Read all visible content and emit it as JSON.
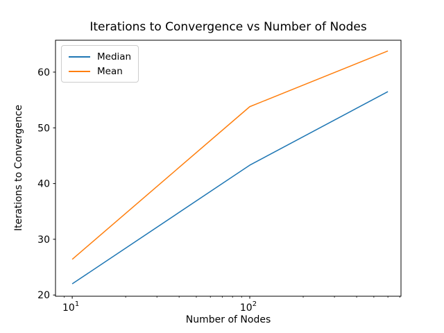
{
  "chart_data": {
    "type": "line",
    "title": "Iterations to Convergence vs Number of Nodes",
    "xlabel": "Number of Nodes",
    "ylabel": "Iterations to Convergence",
    "xscale": "log",
    "x": [
      10,
      100,
      600
    ],
    "series": [
      {
        "name": "Median",
        "color": "#1f77b4",
        "values": [
          22.0,
          43.3,
          56.5
        ]
      },
      {
        "name": "Mean",
        "color": "#ff7f0e",
        "values": [
          26.4,
          53.8,
          63.8
        ]
      }
    ],
    "xlim": [
      8.05,
      711
    ],
    "ylim": [
      19.78,
      65.72
    ],
    "yticks": [
      20,
      30,
      40,
      50,
      60
    ],
    "xticks_major": [
      {
        "value": 10,
        "base": "10",
        "exp": "1"
      },
      {
        "value": 100,
        "base": "10",
        "exp": "2"
      }
    ],
    "xticks_minor": [
      9,
      20,
      30,
      40,
      50,
      60,
      70,
      80,
      90,
      200,
      300,
      400,
      500,
      600,
      700
    ],
    "grid": false,
    "legend": {
      "position": "upper left",
      "entries": [
        {
          "label": "Median",
          "color": "#1f77b4"
        },
        {
          "label": "Mean",
          "color": "#ff7f0e"
        }
      ]
    },
    "colors": {
      "axis": "#000000",
      "background": "#ffffff"
    }
  }
}
